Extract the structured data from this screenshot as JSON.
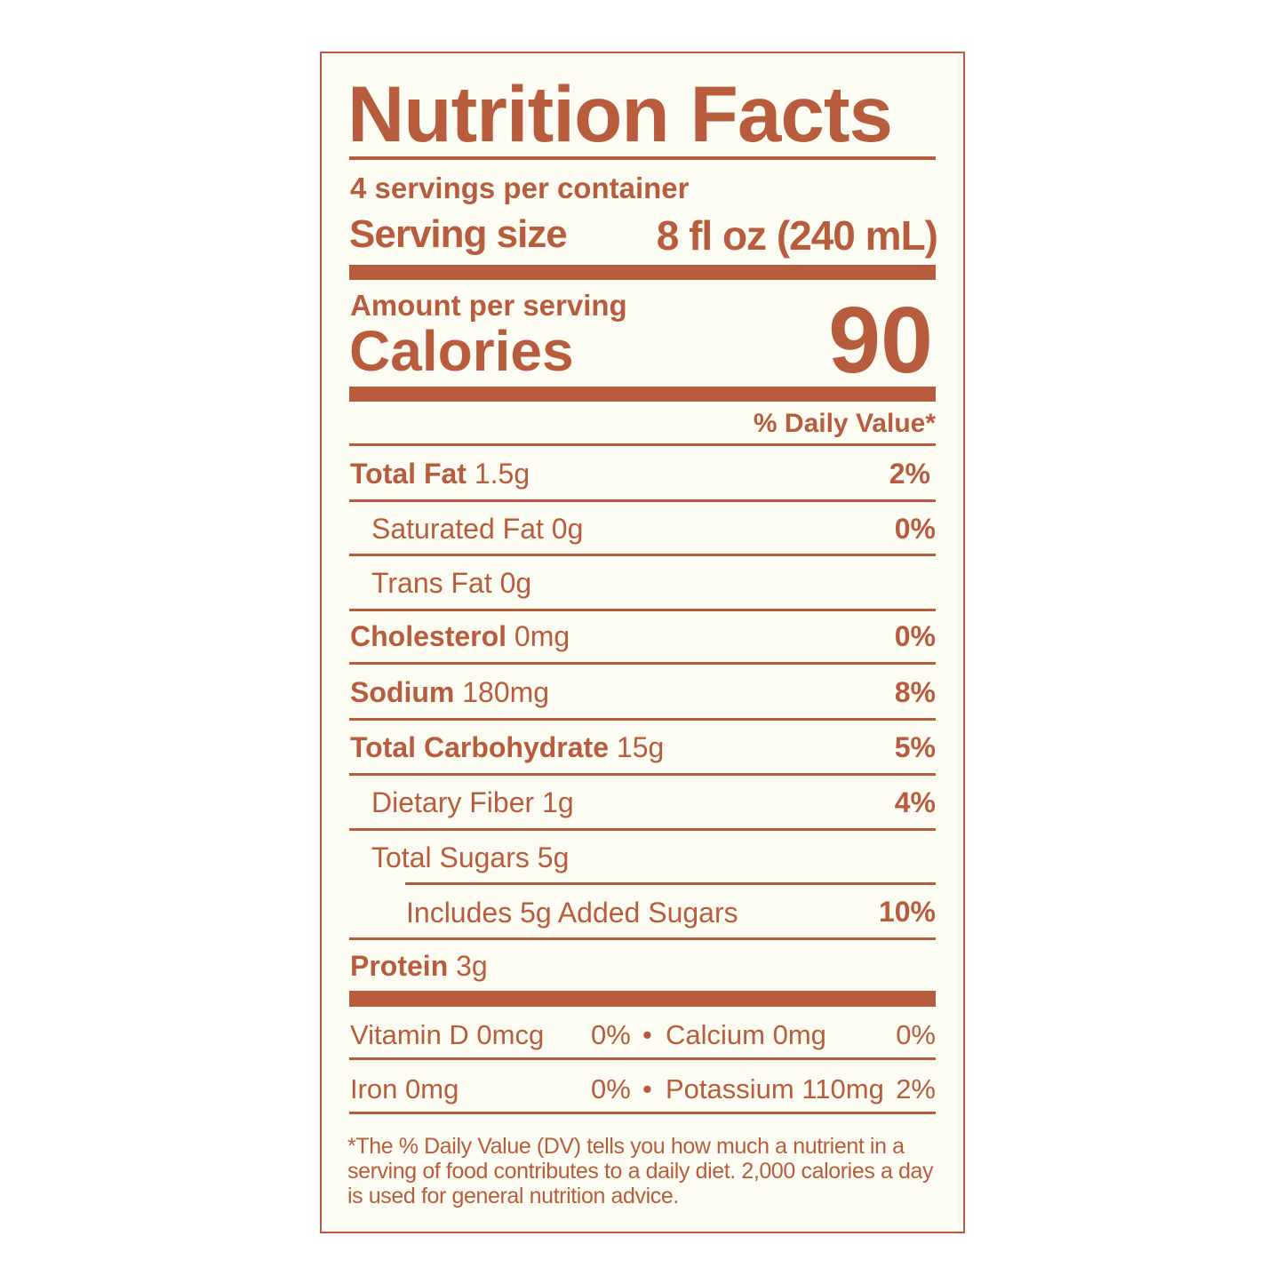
{
  "title": "Nutrition Facts",
  "servings_per_container": "4 servings per container",
  "serving_size_label": "Serving size",
  "serving_size_value": "8 fl oz (240 mL)",
  "amount_per_serving": "Amount per serving",
  "calories_label": "Calories",
  "calories_value": "90",
  "daily_value_header": "% Daily Value*",
  "nutrients": [
    {
      "name": "Total Fat",
      "amount": "1.5g",
      "dv": "2%"
    },
    {
      "name": "Saturated Fat 0g",
      "dv": "0%"
    },
    {
      "name": "Trans Fat 0g"
    },
    {
      "name": "Cholesterol",
      "amount": "0mg",
      "dv": "0%"
    },
    {
      "name": "Sodium",
      "amount": "180mg",
      "dv": "8%"
    },
    {
      "name": "Total Carbohydrate",
      "amount": "15g",
      "dv": "5%"
    },
    {
      "name": "Dietary Fiber 1g",
      "dv": "4%"
    },
    {
      "name": "Total Sugars 5g"
    },
    {
      "name": "Includes 5g Added Sugars",
      "dv": "10%"
    },
    {
      "name": "Protein",
      "amount": "3g"
    }
  ],
  "micros": [
    {
      "left": "Vitamin D 0mcg",
      "left_dv": "0%",
      "right": "Calcium 0mg",
      "right_dv": "0%"
    },
    {
      "left": "Iron 0mg",
      "left_dv": "0%",
      "right": "Potassium 110mg",
      "right_dv": "2%"
    }
  ],
  "bullet": "•",
  "footnote": "*The % Daily Value (DV) tells you how much a nutrient in a serving of food contributes to a daily diet. 2,000 calories a day is used for general nutrition advice.",
  "colors": {
    "accent": "#b85c3e",
    "background": "#fdfcf3"
  }
}
